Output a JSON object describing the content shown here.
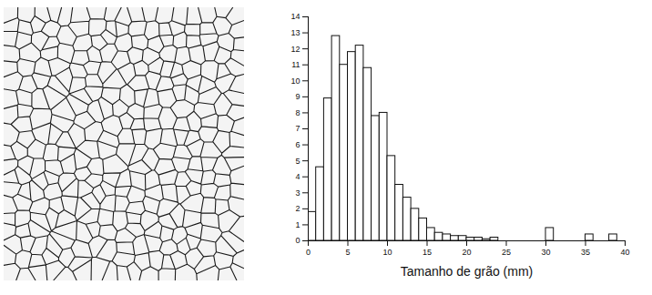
{
  "chart_data": {
    "type": "histogram",
    "xlabel": "Tamanho de grão (mm)",
    "bins": [
      0,
      1,
      2,
      3,
      4,
      5,
      6,
      7,
      8,
      9,
      10,
      11,
      12,
      13,
      14,
      15,
      16,
      17,
      18,
      19,
      20,
      21,
      22,
      23,
      24,
      25,
      26,
      27,
      28,
      29,
      30,
      31,
      32,
      33,
      34,
      35,
      36,
      37,
      38,
      39,
      40
    ],
    "counts": [
      1.8,
      4.6,
      8.9,
      12.8,
      11,
      11.8,
      12.2,
      10.8,
      7.8,
      8,
      5.3,
      3.5,
      2.7,
      2,
      1.4,
      0.8,
      0.5,
      0.4,
      0.3,
      0.3,
      0.2,
      0.2,
      0.1,
      0.2,
      0,
      0,
      0,
      0,
      0,
      0,
      0.8,
      0,
      0,
      0,
      0,
      0.4,
      0,
      0,
      0.4,
      0
    ],
    "color": "#ffffff",
    "xlim": [
      0,
      40
    ],
    "xticks": [
      0,
      5,
      10,
      15,
      20,
      25,
      30,
      35,
      40
    ],
    "ylim": [
      0,
      14
    ],
    "yticks": [
      0,
      1,
      2,
      3,
      4,
      5,
      6,
      7,
      8,
      9,
      10,
      11,
      12,
      13,
      14
    ],
    "grid": false
  }
}
